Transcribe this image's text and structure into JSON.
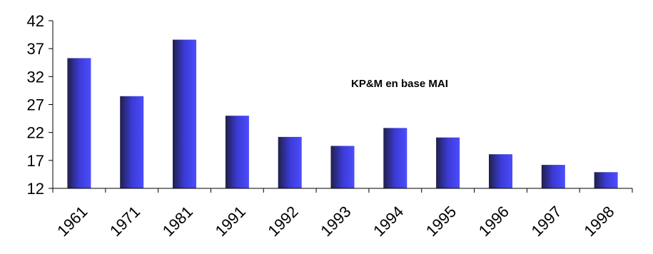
{
  "chart_data": {
    "type": "bar",
    "title": "",
    "xlabel": "",
    "ylabel": "",
    "annotation": "KP&M en base MAI",
    "categories": [
      "1961",
      "1971",
      "1981",
      "1991",
      "1992",
      "1993",
      "1994",
      "1995",
      "1996",
      "1997",
      "1998"
    ],
    "values": [
      35.3,
      28.5,
      38.6,
      25.0,
      21.2,
      19.6,
      22.8,
      21.1,
      18.1,
      16.2,
      14.9
    ],
    "ylim": [
      12,
      42
    ],
    "yticks": [
      12,
      17,
      22,
      27,
      32,
      37,
      42
    ],
    "grid": false,
    "legend": "none",
    "colors": {
      "bar_light": "#4c4cff",
      "bar_dark": "#20204a",
      "axis": "#000000"
    }
  }
}
